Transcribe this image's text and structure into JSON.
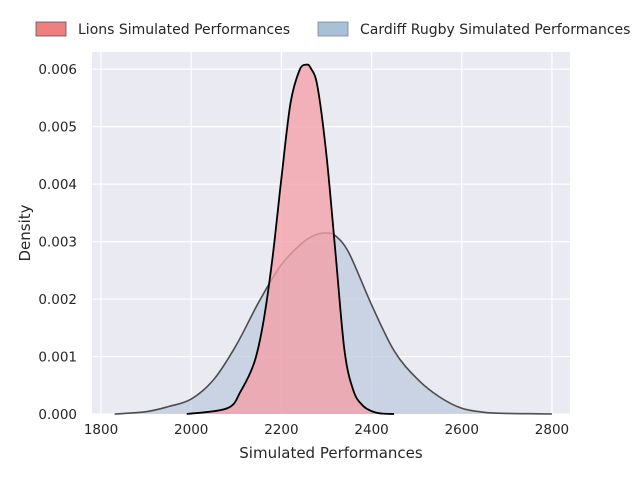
{
  "chart_data": {
    "type": "area",
    "kind": "kde-density",
    "xlabel": "Simulated Performances",
    "ylabel": "Density",
    "xlim": [
      1780,
      2840
    ],
    "ylim": [
      0,
      0.0063
    ],
    "x_ticks": [
      1800,
      2000,
      2200,
      2400,
      2600,
      2800
    ],
    "y_ticks": [
      0.0,
      0.001,
      0.002,
      0.003,
      0.004,
      0.005,
      0.006
    ],
    "x_tick_labels": [
      "1800",
      "2000",
      "2200",
      "2400",
      "2600",
      "2800"
    ],
    "y_tick_labels": [
      "0.000",
      "0.001",
      "0.002",
      "0.003",
      "0.004",
      "0.005",
      "0.006"
    ],
    "grid": true,
    "legend_position": "top",
    "series": [
      {
        "name": "Lions Simulated Performances",
        "fill": "#f4a0a8",
        "legend_color": "#f08080",
        "line": "#000000",
        "x": [
          1990,
          2080,
          2110,
          2140,
          2160,
          2180,
          2200,
          2220,
          2240,
          2255,
          2265,
          2280,
          2300,
          2320,
          2340,
          2360,
          2380,
          2400,
          2420,
          2450
        ],
        "y": [
          0.0,
          0.0001,
          0.0004,
          0.0009,
          0.0016,
          0.0027,
          0.0041,
          0.0054,
          0.00598,
          0.00608,
          0.00602,
          0.0057,
          0.0045,
          0.0028,
          0.0011,
          0.0004,
          0.00015,
          5e-05,
          1e-05,
          0.0
        ]
      },
      {
        "name": "Cardiff Rugby Simulated Performances",
        "fill": "#bccadc",
        "legend_color": "#a9c1d6",
        "line": "#4d4d4d",
        "x": [
          1830,
          1900,
          1950,
          2000,
          2050,
          2100,
          2150,
          2200,
          2250,
          2280,
          2300,
          2320,
          2350,
          2400,
          2450,
          2500,
          2550,
          2600,
          2650,
          2700,
          2750,
          2800
        ],
        "y": [
          0.0,
          4e-05,
          0.00013,
          0.00026,
          0.0006,
          0.0012,
          0.00195,
          0.0026,
          0.003,
          0.00313,
          0.00315,
          0.0031,
          0.0028,
          0.0019,
          0.0011,
          0.00062,
          0.0003,
          0.0001,
          3e-05,
          1e-05,
          5e-06,
          0.0
        ]
      }
    ]
  }
}
